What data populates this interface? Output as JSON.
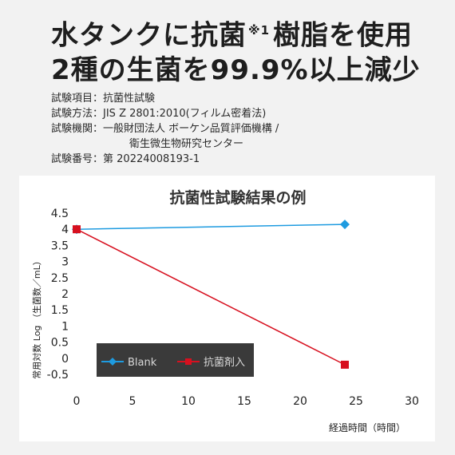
{
  "headline": {
    "line1_main": "水タンクに抗菌",
    "line1_note": "※1",
    "line1_tail": "樹脂を使用",
    "line2": "2種の生菌を99.9%以上減少"
  },
  "test_info": [
    {
      "label": "試験項目：",
      "value": "抗菌性試験"
    },
    {
      "label": "試験方法：",
      "value": "JIS Z 2801:2010(フィルム密着法)"
    },
    {
      "label": "試験機関：",
      "value": "一般財団法人 ボーケン品質評価機構 /"
    },
    {
      "label": "",
      "value": "衛生微生物研究センター"
    },
    {
      "label": "試験番号：",
      "value": "第 20224008193-1"
    }
  ],
  "chart_data": {
    "type": "line",
    "title": "抗菌性試験結果の例",
    "xlabel": "経過時間（時間）",
    "ylabel": "常用対数 Log （生菌数／mL）",
    "xlim": [
      0,
      30
    ],
    "ylim": [
      -0.5,
      4.5
    ],
    "x_ticks": [
      "0",
      "5",
      "10",
      "15",
      "20",
      "25",
      "30"
    ],
    "y_ticks": [
      "4.5",
      "4",
      "3.5",
      "3",
      "2.5",
      "2",
      "1.5",
      "1",
      "0.5",
      "0",
      "-0.5"
    ],
    "grid": false,
    "legend_placement": "lower-left",
    "series": [
      {
        "name": "Blank",
        "color": "#1e9be0",
        "marker": "diamond",
        "x": [
          0,
          24
        ],
        "y": [
          4.0,
          4.15
        ]
      },
      {
        "name": "抗菌剤入",
        "color": "#d7101f",
        "marker": "square",
        "x": [
          0,
          24
        ],
        "y": [
          4.0,
          -0.2
        ]
      }
    ]
  }
}
